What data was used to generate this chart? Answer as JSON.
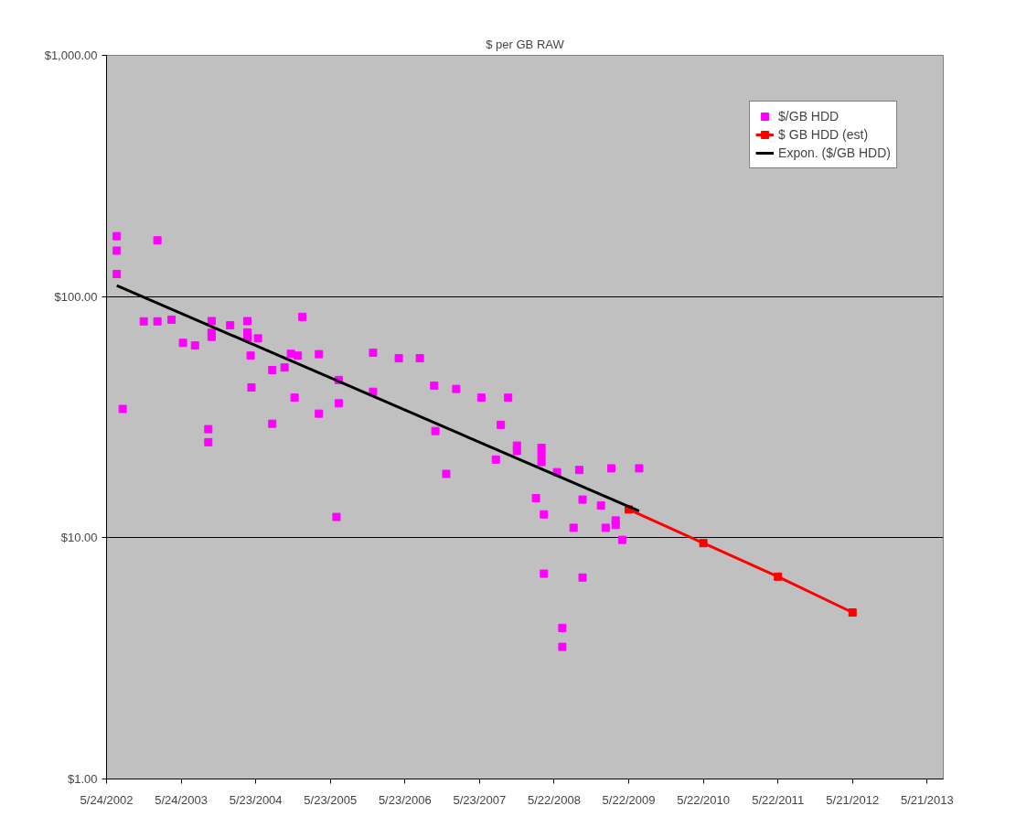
{
  "chart_data": {
    "type": "scatter",
    "title": "$ per GB RAW",
    "xlim": [
      "2002-05-24",
      "2013-08-08"
    ],
    "xticks": [
      {
        "value": "2002-05-24",
        "label": "5/24/2002"
      },
      {
        "value": "2003-05-24",
        "label": "5/24/2003"
      },
      {
        "value": "2004-05-23",
        "label": "5/23/2004"
      },
      {
        "value": "2005-05-23",
        "label": "5/23/2005"
      },
      {
        "value": "2006-05-23",
        "label": "5/23/2006"
      },
      {
        "value": "2007-05-23",
        "label": "5/23/2007"
      },
      {
        "value": "2008-05-22",
        "label": "5/22/2008"
      },
      {
        "value": "2009-05-22",
        "label": "5/22/2009"
      },
      {
        "value": "2010-05-22",
        "label": "5/22/2010"
      },
      {
        "value": "2011-05-22",
        "label": "5/22/2011"
      },
      {
        "value": "2012-05-21",
        "label": "5/21/2012"
      },
      {
        "value": "2013-05-21",
        "label": "5/21/2013"
      }
    ],
    "ylim": [
      1,
      1000
    ],
    "yticks": [
      {
        "value": 1,
        "label": "$1.00"
      },
      {
        "value": 10,
        "label": "$10.00"
      },
      {
        "value": 100,
        "label": "$100.00"
      },
      {
        "value": 1000,
        "label": "$1,000.00"
      }
    ],
    "log": true,
    "grid": "y",
    "legend": "top right",
    "series": [
      {
        "name": "$/GB HDD",
        "marker": "square",
        "color": "#ff00ff",
        "x": [
          "2002-07-13",
          "2002-07-13",
          "2002-07-13",
          "2003-01-28",
          "2002-08-11",
          "2002-11-22",
          "2003-01-28",
          "2003-04-07",
          "2003-06-02",
          "2003-07-31",
          "2003-10-20",
          "2003-10-20",
          "2003-10-20",
          "2003-10-04",
          "2003-10-04",
          "2004-01-19",
          "2004-04-12",
          "2004-04-12",
          "2004-04-12",
          "2004-06-03",
          "2004-04-28",
          "2004-05-02",
          "2004-08-12",
          "2004-10-11",
          "2004-11-11",
          "2004-12-15",
          "2005-01-06",
          "2005-03-28",
          "2004-11-29",
          "2005-03-28",
          "2005-07-03",
          "2005-07-03",
          "2004-08-12",
          "2005-06-22",
          "2005-12-18",
          "2005-12-18",
          "2006-04-23",
          "2006-08-04",
          "2006-10-13",
          "2006-10-19",
          "2006-12-11",
          "2007-01-29",
          "2007-06-01",
          "2007-10-10",
          "2007-09-04",
          "2007-08-11",
          "2007-11-22",
          "2007-11-22",
          "2008-03-21",
          "2008-03-21",
          "2008-03-21",
          "2008-02-23",
          "2008-04-02",
          "2008-04-02",
          "2008-06-05",
          "2008-07-01",
          "2008-07-01",
          "2008-09-22",
          "2008-10-08",
          "2008-10-08",
          "2008-08-25",
          "2009-01-06",
          "2009-01-29",
          "2009-03-19",
          "2009-03-19",
          "2009-02-26",
          "2009-04-20",
          "2009-07-12"
        ],
        "values": [
          178,
          155,
          124,
          171,
          34.2,
          78.9,
          78.9,
          80.2,
          64.3,
          62.7,
          79.1,
          70.8,
          68.1,
          28.2,
          24.9,
          76.0,
          79.1,
          71.0,
          67.5,
          67.1,
          56.9,
          42.0,
          49.6,
          50.8,
          57.9,
          56.9,
          82.4,
          57.7,
          38.1,
          32.7,
          45.1,
          36.1,
          29.7,
          12.2,
          58.5,
          40.3,
          55.5,
          55.5,
          42.7,
          27.7,
          18.4,
          41.4,
          38.1,
          38.1,
          29.4,
          21.1,
          24.1,
          22.9,
          23.6,
          22.2,
          20.6,
          14.6,
          12.5,
          7.1,
          18.7,
          4.23,
          3.53,
          19.1,
          14.4,
          6.84,
          11.0,
          13.6,
          11.0,
          11.8,
          11.3,
          19.4,
          9.8,
          19.4
        ]
      },
      {
        "name": "$ GB HDD (est)",
        "type": "line",
        "marker": "square",
        "color": "#ff0000",
        "x": [
          "2009-05-22",
          "2010-05-22",
          "2011-05-22",
          "2012-05-21"
        ],
        "values": [
          13.1,
          9.5,
          6.9,
          4.9
        ]
      },
      {
        "name": "Expon. ($/GB HDD)",
        "type": "line",
        "marker": "none",
        "color": "#000000",
        "x": [
          "2002-07-13",
          "2009-07-12"
        ],
        "values": [
          111,
          12.9
        ]
      }
    ]
  }
}
